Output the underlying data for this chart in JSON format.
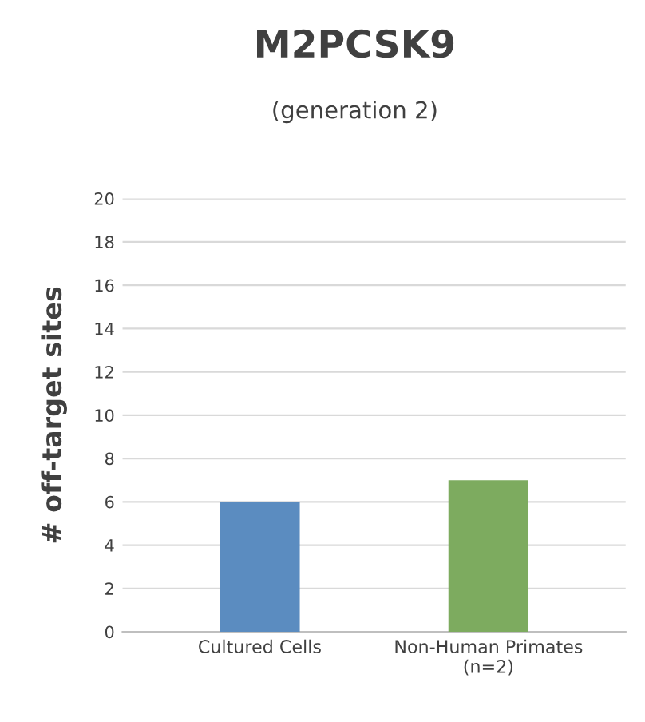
{
  "chart_data": {
    "type": "bar",
    "title": "M2PCSK9",
    "subtitle": "(generation 2)",
    "ylabel": "# off-target sites",
    "categories": [
      "Cultured Cells",
      "Non-Human Primates\n(n=2)"
    ],
    "values": [
      6,
      7
    ],
    "colors": [
      "#5b8cc0",
      "#7dab5f"
    ],
    "ylim": [
      0,
      20
    ],
    "yticks": [
      0,
      2,
      4,
      6,
      8,
      10,
      12,
      14,
      16,
      18,
      20
    ],
    "grid": "y"
  }
}
